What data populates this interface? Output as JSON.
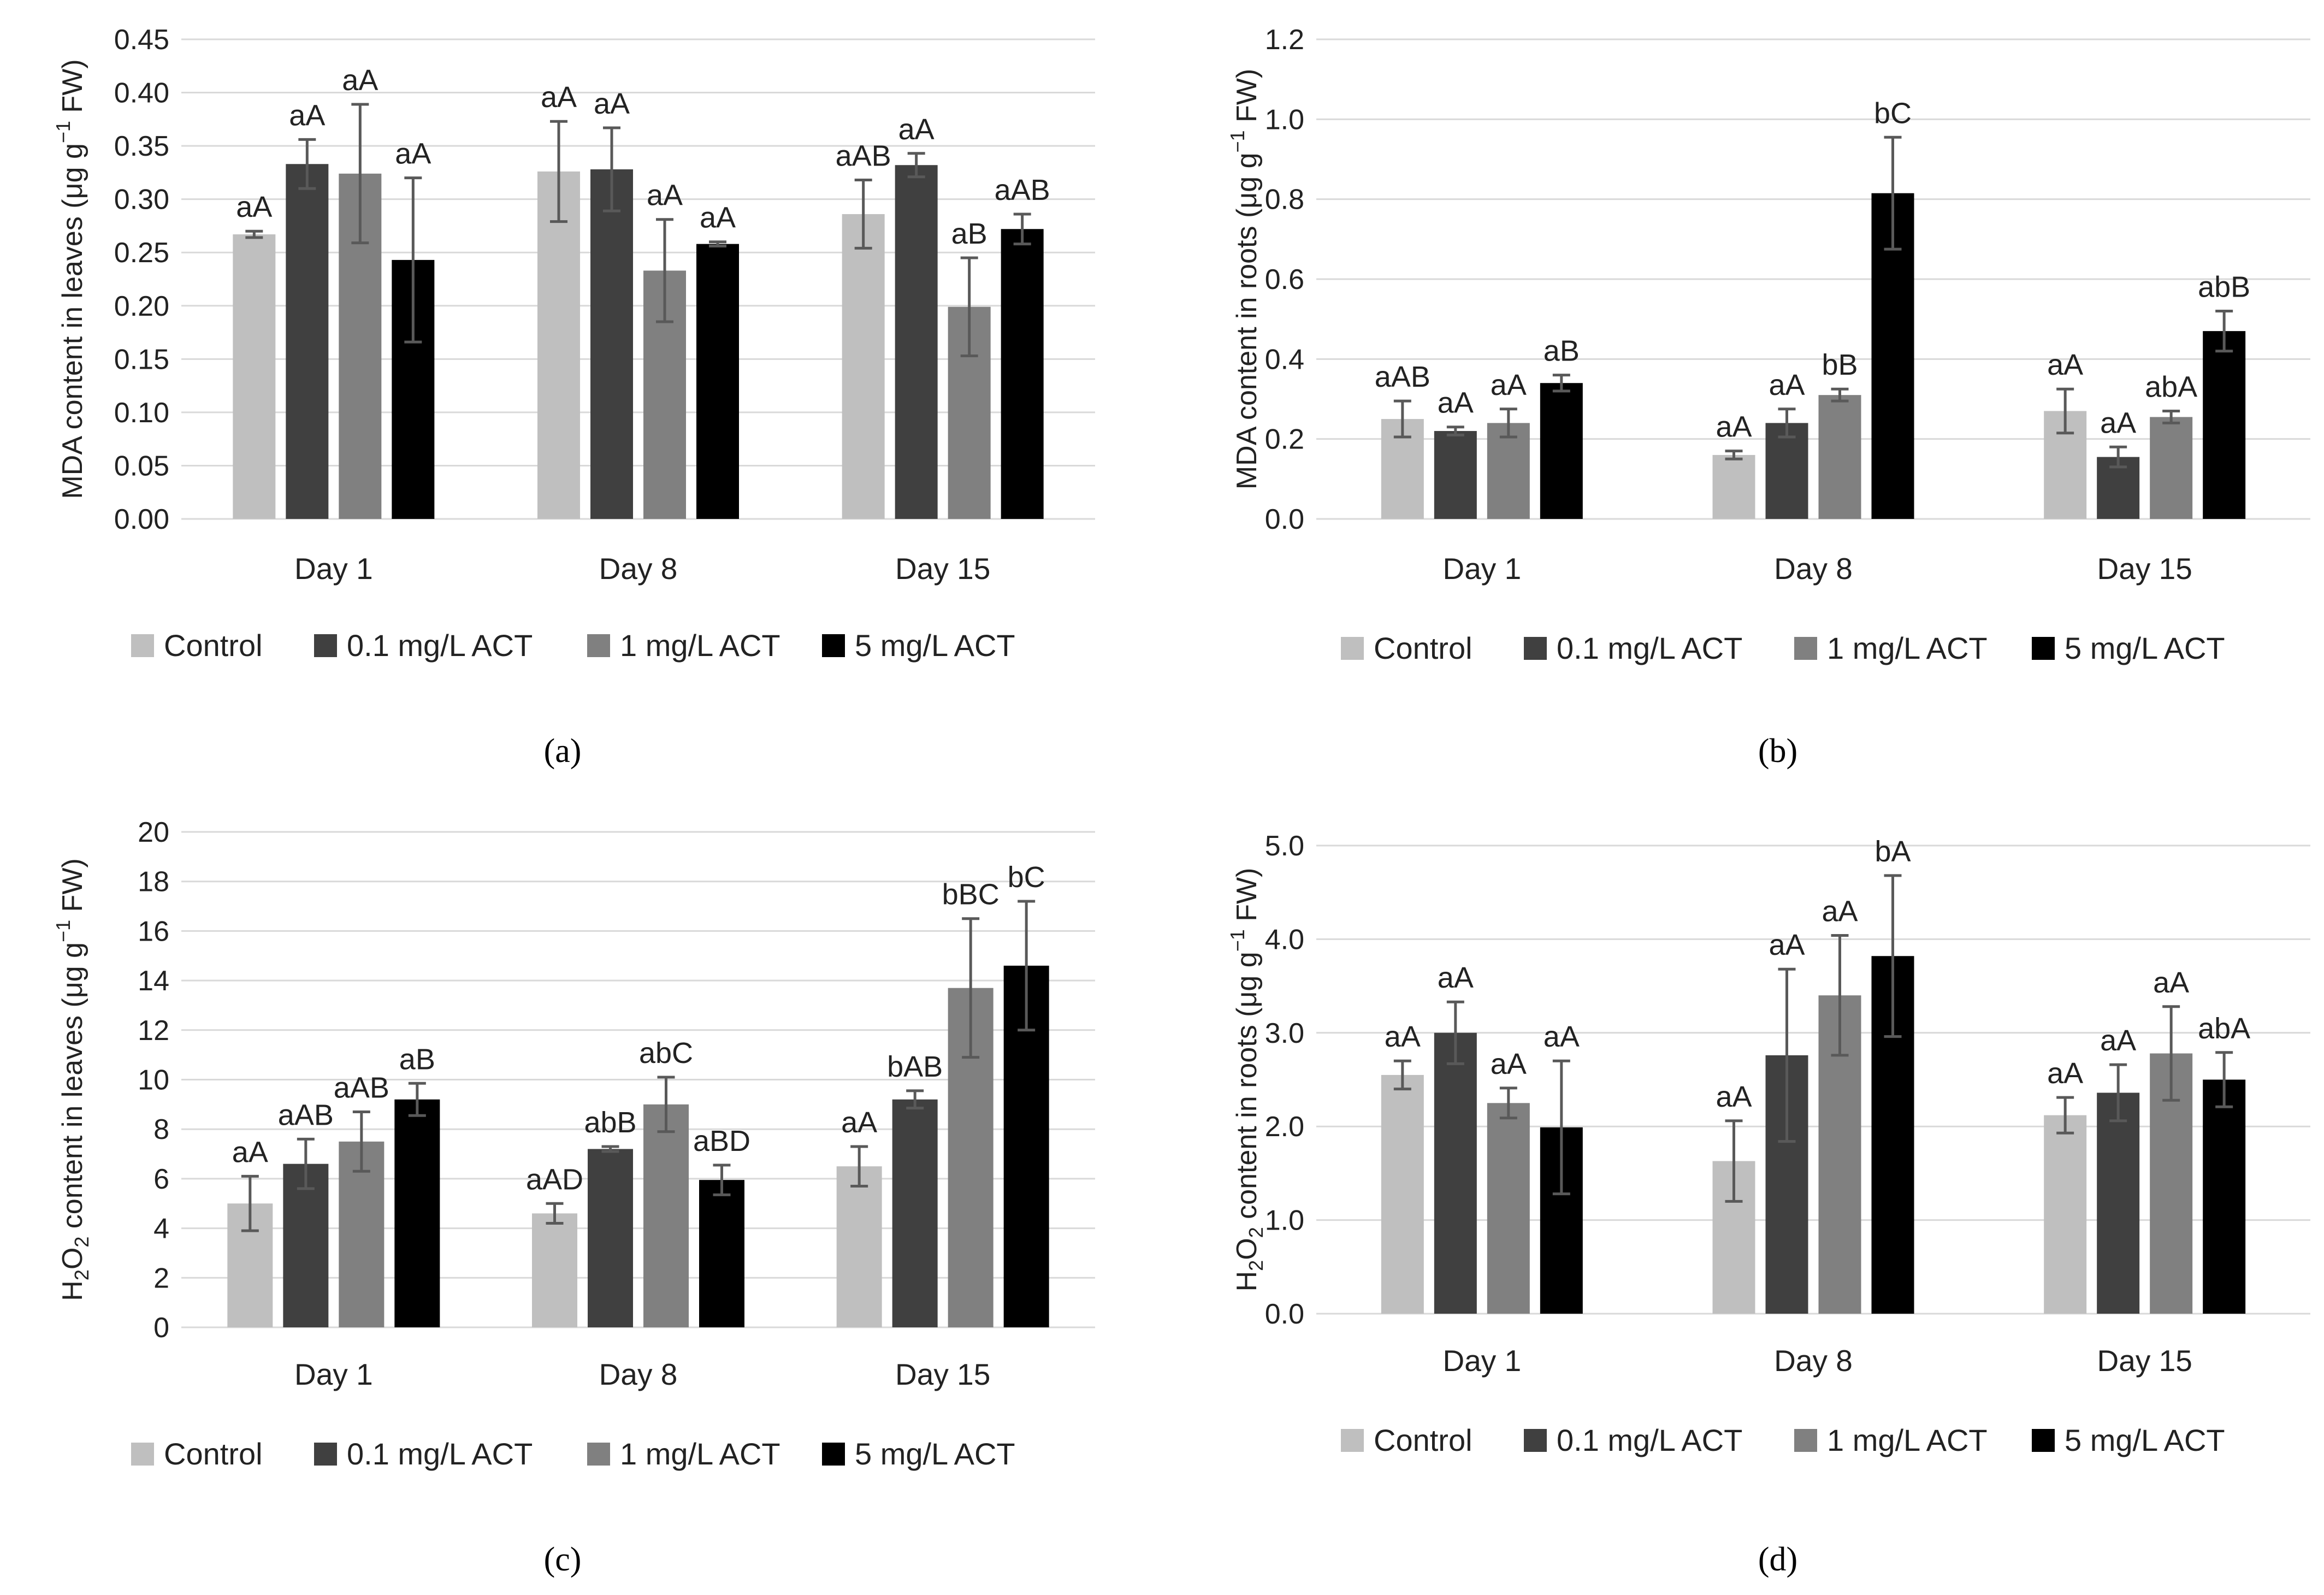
{
  "legend": [
    "Control",
    "0.1 mg/L ACT",
    "1 mg/L ACT",
    "5 mg/L ACT"
  ],
  "colors": [
    "#bfbfbf",
    "#404040",
    "#808080",
    "#000000"
  ],
  "chart_data": [
    {
      "id": "a",
      "type": "bar",
      "panel_label": "(a)",
      "ylabel_pre": "MDA content in leaves (μg g",
      "ylabel_sup": "−1",
      "ylabel_post": " FW)",
      "categories": [
        "Day 1",
        "Day 8",
        "Day 15"
      ],
      "ylim": [
        0,
        0.45
      ],
      "yticks": [
        "0.00",
        "0.05",
        "0.10",
        "0.15",
        "0.20",
        "0.25",
        "0.30",
        "0.35",
        "0.40",
        "0.45"
      ],
      "series": [
        {
          "name": "Control",
          "values": [
            0.267,
            0.326,
            0.286
          ],
          "errors": [
            0.003,
            0.047,
            0.032
          ],
          "labels": [
            "aA",
            "aA",
            "aAB"
          ]
        },
        {
          "name": "0.1 mg/L ACT",
          "values": [
            0.333,
            0.328,
            0.332
          ],
          "errors": [
            0.023,
            0.039,
            0.011
          ],
          "labels": [
            "aA",
            "aA",
            "aA"
          ]
        },
        {
          "name": "1 mg/L ACT",
          "values": [
            0.324,
            0.233,
            0.199
          ],
          "errors": [
            0.065,
            0.048,
            0.046
          ],
          "labels": [
            "aA",
            "aA",
            "aB"
          ]
        },
        {
          "name": "5 mg/L ACT",
          "values": [
            0.243,
            0.258,
            0.272
          ],
          "errors": [
            0.077,
            0.002,
            0.014
          ],
          "labels": [
            "aA",
            "aA",
            "aAB"
          ]
        }
      ]
    },
    {
      "id": "b",
      "type": "bar",
      "panel_label": "(b)",
      "ylabel_pre": "MDA content in roots (μg g",
      "ylabel_sup": "−1",
      "ylabel_post": " FW)",
      "categories": [
        "Day 1",
        "Day 8",
        "Day 15"
      ],
      "ylim": [
        0,
        1.2
      ],
      "yticks": [
        "0.0",
        "0.2",
        "0.4",
        "0.6",
        "0.8",
        "1.0",
        "1.2"
      ],
      "series": [
        {
          "name": "Control",
          "values": [
            0.25,
            0.16,
            0.27
          ],
          "errors": [
            0.045,
            0.01,
            0.055
          ],
          "labels": [
            "aAB",
            "aA",
            "aA"
          ]
        },
        {
          "name": "0.1 mg/L ACT",
          "values": [
            0.22,
            0.24,
            0.155
          ],
          "errors": [
            0.01,
            0.035,
            0.025
          ],
          "labels": [
            "aA",
            "aA",
            "aA"
          ]
        },
        {
          "name": "1 mg/L ACT",
          "values": [
            0.24,
            0.31,
            0.255
          ],
          "errors": [
            0.035,
            0.015,
            0.015
          ],
          "labels": [
            "aA",
            "bB",
            "abA"
          ]
        },
        {
          "name": "5 mg/L ACT",
          "values": [
            0.34,
            0.815,
            0.47
          ],
          "errors": [
            0.02,
            0.14,
            0.05
          ],
          "labels": [
            "aB",
            "bC",
            "abB"
          ]
        }
      ]
    },
    {
      "id": "c",
      "type": "bar",
      "panel_label": "(c)",
      "ylabel_pre": "H",
      "ylabel_sub": "2",
      "ylabel_mid": "O",
      "ylabel_sub2": "2",
      "ylabel_post_pre": " content in leaves (μg g",
      "ylabel_sup": "−1",
      "ylabel_post": " FW)",
      "categories": [
        "Day 1",
        "Day 8",
        "Day 15"
      ],
      "ylim": [
        0,
        20
      ],
      "yticks": [
        "0",
        "2",
        "4",
        "6",
        "8",
        "10",
        "12",
        "14",
        "16",
        "18",
        "20"
      ],
      "series": [
        {
          "name": "Control",
          "values": [
            5.0,
            4.6,
            6.5
          ],
          "errors": [
            1.1,
            0.4,
            0.8
          ],
          "labels": [
            "aA",
            "aAD",
            "aA"
          ]
        },
        {
          "name": "0.1 mg/L ACT",
          "values": [
            6.6,
            7.2,
            9.2
          ],
          "errors": [
            1.0,
            0.1,
            0.35
          ],
          "labels": [
            "aAB",
            "abB",
            "bAB"
          ]
        },
        {
          "name": "1 mg/L ACT",
          "values": [
            7.5,
            9.0,
            13.7
          ],
          "errors": [
            1.2,
            1.1,
            2.8
          ],
          "labels": [
            "aAB",
            "abC",
            "bBC"
          ]
        },
        {
          "name": "5 mg/L ACT",
          "values": [
            9.2,
            5.95,
            14.6
          ],
          "errors": [
            0.65,
            0.6,
            2.6
          ],
          "labels": [
            "aB",
            "aBD",
            "bC"
          ]
        }
      ]
    },
    {
      "id": "d",
      "type": "bar",
      "panel_label": "(d)",
      "ylabel_pre": "H",
      "ylabel_sub": "2",
      "ylabel_mid": "O",
      "ylabel_sub2": "2",
      "ylabel_post_pre": " content in roots (μg g",
      "ylabel_sup": "−1",
      "ylabel_post": " FW)",
      "categories": [
        "Day 1",
        "Day 8",
        "Day 15"
      ],
      "ylim": [
        0,
        5.0
      ],
      "yticks": [
        "0.0",
        "1.0",
        "2.0",
        "3.0",
        "4.0",
        "5.0"
      ],
      "series": [
        {
          "name": "Control",
          "values": [
            2.55,
            1.63,
            2.12
          ],
          "errors": [
            0.15,
            0.43,
            0.19
          ],
          "labels": [
            "aA",
            "aA",
            "aA"
          ]
        },
        {
          "name": "0.1 mg/L ACT",
          "values": [
            3.0,
            2.76,
            2.36
          ],
          "errors": [
            0.33,
            0.92,
            0.3
          ],
          "labels": [
            "aA",
            "aA",
            "aA"
          ]
        },
        {
          "name": "1 mg/L ACT",
          "values": [
            2.25,
            3.4,
            2.78
          ],
          "errors": [
            0.16,
            0.64,
            0.5
          ],
          "labels": [
            "aA",
            "aA",
            "aA"
          ]
        },
        {
          "name": "5 mg/L ACT",
          "values": [
            1.99,
            3.82,
            2.5
          ],
          "errors": [
            0.71,
            0.86,
            0.29
          ],
          "labels": [
            "aA",
            "bA",
            "abA"
          ]
        }
      ]
    }
  ]
}
